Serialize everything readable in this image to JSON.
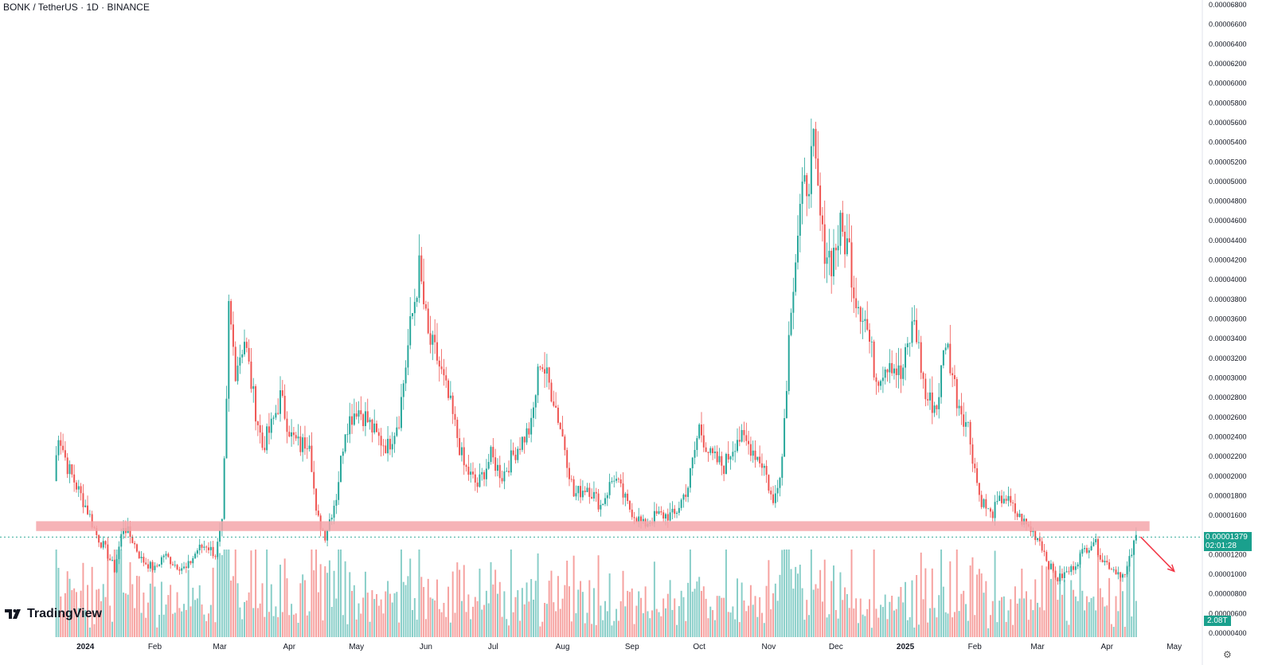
{
  "header": {
    "symbol": "BONK / TetherUS · 1D · BINANCE"
  },
  "brand": {
    "name": "TradingView",
    "icon": "tradingview-logo-icon"
  },
  "last_price": {
    "value": "0.00001379",
    "countdown": "02:01:28",
    "color": "#1aa08d"
  },
  "volume_badge": "2.08T",
  "colors": {
    "up": "#26a69a",
    "down": "#ef5350",
    "zone": "#f4a6aa",
    "arrow": "#f23645"
  },
  "settings_icon": "gear-icon",
  "chart_data": {
    "type": "candlestick",
    "price_axis": {
      "min": 4e-06,
      "max": 6.8e-05,
      "ticks": [
        "0.00006800",
        "0.00006600",
        "0.00006400",
        "0.00006200",
        "0.00006000",
        "0.00005800",
        "0.00005600",
        "0.00005400",
        "0.00005200",
        "0.00005000",
        "0.00004800",
        "0.00004600",
        "0.00004400",
        "0.00004200",
        "0.00004000",
        "0.00003800",
        "0.00003600",
        "0.00003400",
        "0.00003200",
        "0.00003000",
        "0.00002800",
        "0.00002600",
        "0.00002400",
        "0.00002200",
        "0.00002000",
        "0.00001800",
        "0.00001600",
        "0.00001400",
        "0.00001200",
        "0.00001000",
        "0.00000800",
        "0.00000600",
        "0.00000400"
      ]
    },
    "time_axis": {
      "labels": [
        {
          "label": "2024",
          "date": "2024-01-01",
          "bold": true
        },
        {
          "label": "Feb",
          "date": "2024-02-01"
        },
        {
          "label": "Mar",
          "date": "2024-03-01"
        },
        {
          "label": "Apr",
          "date": "2024-04-01"
        },
        {
          "label": "May",
          "date": "2024-05-01"
        },
        {
          "label": "Jun",
          "date": "2024-06-01"
        },
        {
          "label": "Jul",
          "date": "2024-07-01"
        },
        {
          "label": "Aug",
          "date": "2024-08-01"
        },
        {
          "label": "Sep",
          "date": "2024-09-01"
        },
        {
          "label": "Oct",
          "date": "2024-10-01"
        },
        {
          "label": "Nov",
          "date": "2024-11-01"
        },
        {
          "label": "Dec",
          "date": "2024-12-01"
        },
        {
          "label": "2025",
          "date": "2025-01-01",
          "bold": true
        },
        {
          "label": "Feb",
          "date": "2025-02-01"
        },
        {
          "label": "Mar",
          "date": "2025-03-01"
        },
        {
          "label": "Apr",
          "date": "2025-04-01"
        },
        {
          "label": "May",
          "date": "2025-05-01"
        }
      ]
    },
    "series": [
      {
        "name": "BONK / TetherUS",
        "close_path": [
          [
            "2023-12-18",
            1.95e-05
          ],
          [
            "2023-12-20",
            2.45e-05
          ],
          [
            "2023-12-24",
            2.1e-05
          ],
          [
            "2023-12-28",
            1.9e-05
          ],
          [
            "2024-01-02",
            1.65e-05
          ],
          [
            "2024-01-06",
            1.4e-05
          ],
          [
            "2024-01-10",
            1.25e-05
          ],
          [
            "2024-01-14",
            1.05e-05
          ],
          [
            "2024-01-18",
            1.5e-05
          ],
          [
            "2024-01-22",
            1.35e-05
          ],
          [
            "2024-01-26",
            1.15e-05
          ],
          [
            "2024-02-01",
            1.05e-05
          ],
          [
            "2024-02-05",
            1.2e-05
          ],
          [
            "2024-02-10",
            1.1e-05
          ],
          [
            "2024-02-15",
            1.05e-05
          ],
          [
            "2024-02-20",
            1.25e-05
          ],
          [
            "2024-02-24",
            1.3e-05
          ],
          [
            "2024-02-28",
            1.2e-05
          ],
          [
            "2024-03-02",
            1.5e-05
          ],
          [
            "2024-03-04",
            2.7e-05
          ],
          [
            "2024-03-05",
            3.7e-05
          ],
          [
            "2024-03-08",
            3.1e-05
          ],
          [
            "2024-03-12",
            3.4e-05
          ],
          [
            "2024-03-16",
            2.8e-05
          ],
          [
            "2024-03-20",
            2.3e-05
          ],
          [
            "2024-03-24",
            2.5e-05
          ],
          [
            "2024-03-28",
            2.8e-05
          ],
          [
            "2024-04-02",
            2.4e-05
          ],
          [
            "2024-04-06",
            2.3e-05
          ],
          [
            "2024-04-10",
            2.4e-05
          ],
          [
            "2024-04-13",
            1.6e-05
          ],
          [
            "2024-04-17",
            1.4e-05
          ],
          [
            "2024-04-22",
            1.8e-05
          ],
          [
            "2024-04-26",
            2.5e-05
          ],
          [
            "2024-05-01",
            2.7e-05
          ],
          [
            "2024-05-05",
            2.6e-05
          ],
          [
            "2024-05-10",
            2.4e-05
          ],
          [
            "2024-05-15",
            2.3e-05
          ],
          [
            "2024-05-20",
            2.6e-05
          ],
          [
            "2024-05-25",
            3.5e-05
          ],
          [
            "2024-05-29",
            4.1e-05
          ],
          [
            "2024-06-02",
            3.4e-05
          ],
          [
            "2024-06-06",
            3.2e-05
          ],
          [
            "2024-06-12",
            2.7e-05
          ],
          [
            "2024-06-18",
            2.1e-05
          ],
          [
            "2024-06-24",
            1.9e-05
          ],
          [
            "2024-06-30",
            2.2e-05
          ],
          [
            "2024-07-05",
            2e-05
          ],
          [
            "2024-07-12",
            2.3e-05
          ],
          [
            "2024-07-18",
            2.5e-05
          ],
          [
            "2024-07-22",
            3.2e-05
          ],
          [
            "2024-07-28",
            2.8e-05
          ],
          [
            "2024-08-02",
            2.3e-05
          ],
          [
            "2024-08-06",
            1.8e-05
          ],
          [
            "2024-08-12",
            1.9e-05
          ],
          [
            "2024-08-18",
            1.7e-05
          ],
          [
            "2024-08-24",
            2e-05
          ],
          [
            "2024-08-30",
            1.7e-05
          ],
          [
            "2024-09-06",
            1.5e-05
          ],
          [
            "2024-09-12",
            1.6e-05
          ],
          [
            "2024-09-20",
            1.6e-05
          ],
          [
            "2024-09-26",
            1.9e-05
          ],
          [
            "2024-10-01",
            2.5e-05
          ],
          [
            "2024-10-06",
            2.2e-05
          ],
          [
            "2024-10-12",
            2.1e-05
          ],
          [
            "2024-10-18",
            2.4e-05
          ],
          [
            "2024-10-24",
            2.3e-05
          ],
          [
            "2024-10-30",
            2.1e-05
          ],
          [
            "2024-11-03",
            1.7e-05
          ],
          [
            "2024-11-07",
            2.2e-05
          ],
          [
            "2024-11-11",
            3.8e-05
          ],
          [
            "2024-11-15",
            4.7e-05
          ],
          [
            "2024-11-19",
            5.1e-05
          ],
          [
            "2024-11-21",
            5.3e-05
          ],
          [
            "2024-11-25",
            4.4e-05
          ],
          [
            "2024-11-29",
            4.2e-05
          ],
          [
            "2024-12-03",
            4.5e-05
          ],
          [
            "2024-12-07",
            4.3e-05
          ],
          [
            "2024-12-09",
            3.9e-05
          ],
          [
            "2024-12-14",
            3.6e-05
          ],
          [
            "2024-12-19",
            3e-05
          ],
          [
            "2024-12-25",
            3.2e-05
          ],
          [
            "2024-12-30",
            3e-05
          ],
          [
            "2025-01-05",
            3.6e-05
          ],
          [
            "2025-01-10",
            2.8e-05
          ],
          [
            "2025-01-15",
            2.7e-05
          ],
          [
            "2025-01-19",
            3.4e-05
          ],
          [
            "2025-01-24",
            2.8e-05
          ],
          [
            "2025-01-29",
            2.5e-05
          ],
          [
            "2025-02-03",
            1.8e-05
          ],
          [
            "2025-02-08",
            1.6e-05
          ],
          [
            "2025-02-14",
            1.8e-05
          ],
          [
            "2025-02-20",
            1.6e-05
          ],
          [
            "2025-02-26",
            1.45e-05
          ],
          [
            "2025-03-02",
            1.35e-05
          ],
          [
            "2025-03-06",
            1.1e-05
          ],
          [
            "2025-03-10",
            9.5e-06
          ],
          [
            "2025-03-16",
            1.05e-05
          ],
          [
            "2025-03-22",
            1.25e-05
          ],
          [
            "2025-03-26",
            1.35e-05
          ],
          [
            "2025-03-30",
            1.15e-05
          ],
          [
            "2025-04-04",
            1.05e-05
          ],
          [
            "2025-04-09",
            9.8e-06
          ],
          [
            "2025-04-14",
            1.379e-05
          ]
        ]
      }
    ],
    "annotations": [
      {
        "type": "horizontal-zone",
        "from": 1.44e-05,
        "to": 1.54e-05,
        "start": "2023-12-10",
        "end": "2025-04-20"
      },
      {
        "type": "arrow",
        "from_date": "2025-04-16",
        "from": 1.38e-05,
        "to_date": "2025-05-01",
        "to": 1.03e-05
      }
    ]
  }
}
